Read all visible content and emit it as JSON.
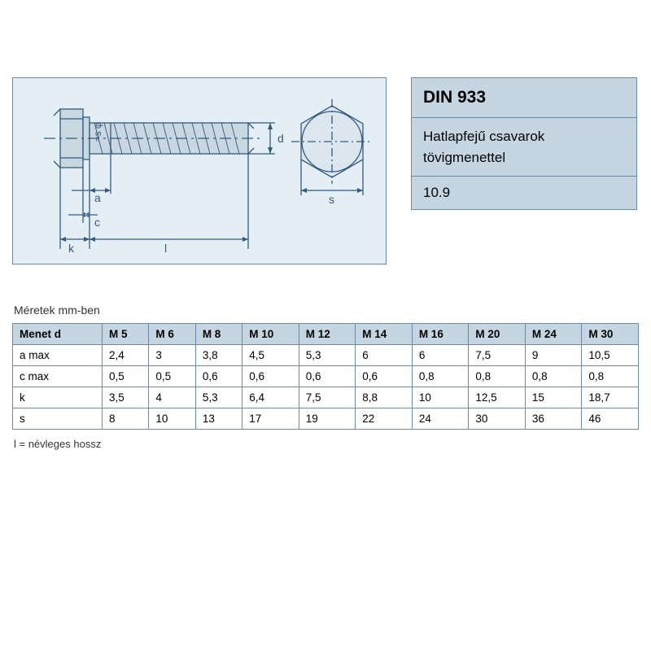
{
  "info": {
    "title": "DIN 933",
    "desc_line1": "Hatlapfejű csavarok",
    "desc_line2": "tövigmenettel",
    "grade": "10.9"
  },
  "diagram": {
    "bg": "#e4eff5",
    "border": "#6b8aa6",
    "line_color": "#345a7e",
    "fill_color": "#b8c8d4",
    "labels": {
      "a": "a",
      "c": "c",
      "k": "k",
      "l": "l",
      "d": "d",
      "s": "s",
      "sphi": "≈s φ"
    }
  },
  "caption": "Méretek mm-ben",
  "table": {
    "header_bg": "#c5d6e2",
    "border": "#6b8aa6",
    "row_header": "Menet d",
    "columns": [
      "M 5",
      "M 6",
      "M 8",
      "M 10",
      "M 12",
      "M 14",
      "M 16",
      "M 20",
      "M 24",
      "M 30"
    ],
    "rows": [
      {
        "label": "a max",
        "values": [
          "2,4",
          "3",
          "3,8",
          "4,5",
          "5,3",
          "6",
          "6",
          "7,5",
          "9",
          "10,5"
        ]
      },
      {
        "label": "c max",
        "values": [
          "0,5",
          "0,5",
          "0,6",
          "0,6",
          "0,6",
          "0,6",
          "0,8",
          "0,8",
          "0,8",
          "0,8"
        ]
      },
      {
        "label": "k",
        "values": [
          "3,5",
          "4",
          "5,3",
          "6,4",
          "7,5",
          "8,8",
          "10",
          "12,5",
          "15",
          "18,7"
        ]
      },
      {
        "label": "s",
        "values": [
          "8",
          "10",
          "13",
          "17",
          "19",
          "22",
          "24",
          "30",
          "36",
          "46"
        ]
      }
    ]
  },
  "footnote": "l = névleges hossz"
}
